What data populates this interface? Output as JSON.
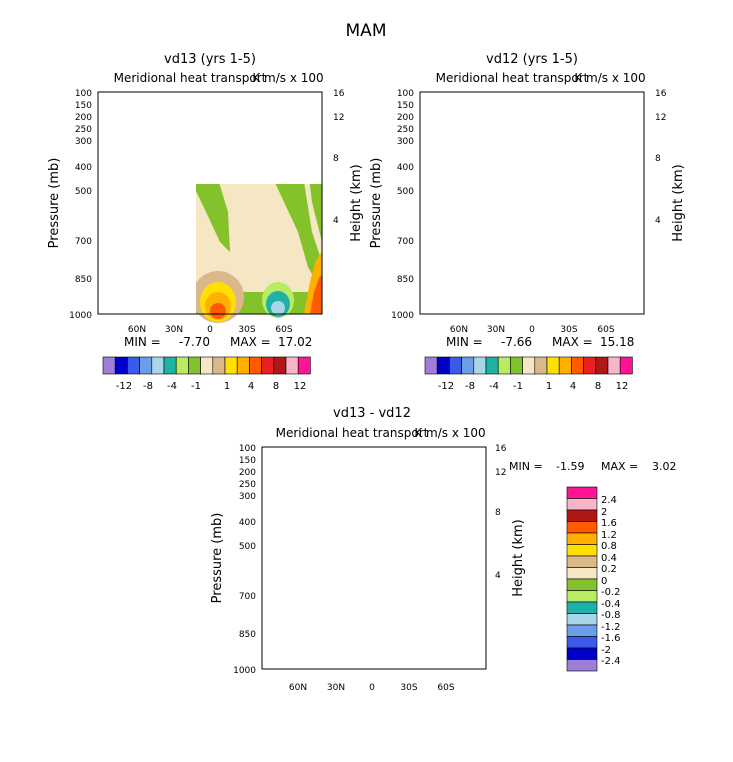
{
  "figure_title": "MAM",
  "chart_data": [
    {
      "type": "heatmap",
      "title": "vd13 (yrs 1-5)",
      "subtitle": "Meridional heat transport",
      "units": "K m/s x 100",
      "ylabel": "Pressure (mb)",
      "y2label": "Height (km)",
      "pressure_ticks": [
        "100",
        "150",
        "200",
        "250",
        "300",
        "400",
        "500",
        "700",
        "850",
        "1000"
      ],
      "height_ticks": [
        "16",
        "12",
        "8",
        "4"
      ],
      "lat_ticks": [
        "60N",
        "30N",
        "0",
        "30S",
        "60S"
      ],
      "xlim": [
        90,
        -90
      ],
      "ylim": [
        1000,
        100
      ],
      "min_label": "MIN =",
      "min": "-7.70",
      "max_label": "MAX =",
      "max": "17.02",
      "colorbar_labels": [
        "-12",
        "-8",
        "-4",
        "-1",
        "1",
        "4",
        "8",
        "12"
      ]
    },
    {
      "type": "heatmap",
      "title": "vd12 (yrs 1-5)",
      "subtitle": "Meridional heat transport",
      "units": "K m/s x 100",
      "ylabel": "Pressure (mb)",
      "y2label": "Height (km)",
      "pressure_ticks": [
        "100",
        "150",
        "200",
        "250",
        "300",
        "400",
        "500",
        "700",
        "850",
        "1000"
      ],
      "height_ticks": [
        "16",
        "12",
        "8",
        "4"
      ],
      "lat_ticks": [
        "60N",
        "30N",
        "0",
        "30S",
        "60S"
      ],
      "xlim": [
        90,
        -90
      ],
      "ylim": [
        1000,
        100
      ],
      "min_label": "MIN =",
      "min": "-7.66",
      "max_label": "MAX =",
      "max": "15.18",
      "colorbar_labels": [
        "-12",
        "-8",
        "-4",
        "-1",
        "1",
        "4",
        "8",
        "12"
      ]
    },
    {
      "type": "heatmap",
      "title": "vd13 - vd12",
      "subtitle": "Meridional heat transport",
      "units": "K m/s x 100",
      "ylabel": "Pressure (mb)",
      "y2label": "Height (km)",
      "pressure_ticks": [
        "100",
        "150",
        "200",
        "250",
        "300",
        "400",
        "500",
        "700",
        "850",
        "1000"
      ],
      "height_ticks": [
        "16",
        "12",
        "8",
        "4"
      ],
      "lat_ticks": [
        "60N",
        "30N",
        "0",
        "30S",
        "60S"
      ],
      "xlim": [
        90,
        -90
      ],
      "ylim": [
        1000,
        100
      ],
      "min_label": "MIN =",
      "min": "-1.59",
      "max_label": "MAX =",
      "max": "3.02",
      "colorbar_labels": [
        "2.4",
        "2",
        "1.6",
        "1.2",
        "0.8",
        "0.4",
        "0.2",
        "0",
        "-0.2",
        "-0.4",
        "-0.8",
        "-1.2",
        "-1.6",
        "-2",
        "-2.4"
      ]
    }
  ],
  "colors": {
    "main_scale": [
      "#9c7ed6",
      "#0000c8",
      "#3a5ae8",
      "#6a9ee8",
      "#a8d6e8",
      "#1fb0a8",
      "#b8ec64",
      "#84c22c",
      "#f5e6c4",
      "#dab88a",
      "#ffe000",
      "#ffb000",
      "#ff5a00",
      "#e82020",
      "#b01818",
      "#f8b4c8",
      "#ff1493"
    ],
    "diff_scale": [
      "#ff1493",
      "#f8b4c8",
      "#b01818",
      "#ff5a00",
      "#ffb000",
      "#ffe000",
      "#dab88a",
      "#f5e6c4",
      "#84c22c",
      "#b8ec64",
      "#1fb0a8",
      "#a8d6e8",
      "#6a9ee8",
      "#3a5ae8",
      "#0000c8",
      "#9c7ed6"
    ],
    "background_positive": "#f5e6c4",
    "green": "#84c22c",
    "light_green": "#b8ec64",
    "teal": "#1fb0a8",
    "light_blue": "#a8d6e8",
    "tan": "#dab88a",
    "yellow": "#ffe000",
    "orange": "#ffb000",
    "red_orange": "#ff5a00",
    "red": "#e82020"
  }
}
